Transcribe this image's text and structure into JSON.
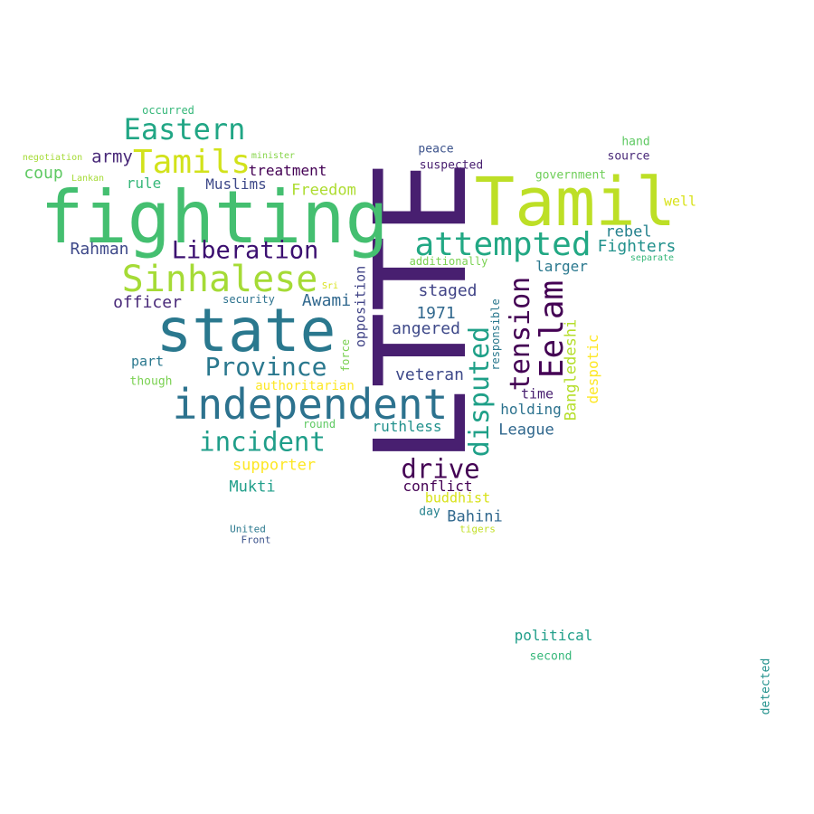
{
  "words": [
    {
      "text": "LTTE",
      "color": "#481f70",
      "vertical": true
    },
    {
      "text": "fighting",
      "color": "#44bf70",
      "vertical": false
    },
    {
      "text": "Tamil",
      "color": "#bddf26",
      "vertical": false
    },
    {
      "text": "state",
      "color": "#2a788e",
      "vertical": false
    },
    {
      "text": "independent",
      "color": "#2c728e",
      "vertical": false
    },
    {
      "text": "Sinhalese",
      "color": "#a5db36",
      "vertical": false
    },
    {
      "text": "Tamils",
      "color": "#d2e21b",
      "vertical": false
    },
    {
      "text": "attempted",
      "color": "#22a884",
      "vertical": false
    },
    {
      "text": "Eastern",
      "color": "#21a685",
      "vertical": false
    },
    {
      "text": "Liberation",
      "color": "#3b0f70",
      "vertical": false
    },
    {
      "text": "Province",
      "color": "#2a788e",
      "vertical": false
    },
    {
      "text": "incident",
      "color": "#1f9e89",
      "vertical": false
    },
    {
      "text": "Eelam",
      "color": "#440154",
      "vertical": true
    },
    {
      "text": "tension",
      "color": "#440154",
      "vertical": true
    },
    {
      "text": "disputed",
      "color": "#1fa088",
      "vertical": true
    },
    {
      "text": "drive",
      "color": "#440154",
      "vertical": false
    },
    {
      "text": "Fighters",
      "color": "#21918c",
      "vertical": false
    },
    {
      "text": "army",
      "color": "#482878",
      "vertical": false
    },
    {
      "text": "coup",
      "color": "#5ec962",
      "vertical": false
    },
    {
      "text": "treatment",
      "color": "#440154",
      "vertical": false
    },
    {
      "text": "Muslims",
      "color": "#3e4989",
      "vertical": false
    },
    {
      "text": "rule",
      "color": "#35b779",
      "vertical": false
    },
    {
      "text": "Freedom",
      "color": "#addc30",
      "vertical": false
    },
    {
      "text": "Rahman",
      "color": "#3e4989",
      "vertical": false
    },
    {
      "text": "officer",
      "color": "#482878",
      "vertical": false
    },
    {
      "text": "Awami",
      "color": "#31688e",
      "vertical": false
    },
    {
      "text": "staged",
      "color": "#414487",
      "vertical": false
    },
    {
      "text": "1971",
      "color": "#31688e",
      "vertical": false
    },
    {
      "text": "angered",
      "color": "#3e4989",
      "vertical": false
    },
    {
      "text": "veteran",
      "color": "#3e4989",
      "vertical": false
    },
    {
      "text": "rebel",
      "color": "#26828e",
      "vertical": false
    },
    {
      "text": "larger",
      "color": "#2a788e",
      "vertical": false
    },
    {
      "text": "time",
      "color": "#481f70",
      "vertical": false
    },
    {
      "text": "holding",
      "color": "#2c728e",
      "vertical": false
    },
    {
      "text": "League",
      "color": "#31688e",
      "vertical": false
    },
    {
      "text": "Bangledeshi",
      "color": "#b5de2b",
      "vertical": true
    },
    {
      "text": "despotic",
      "color": "#fde725",
      "vertical": true
    },
    {
      "text": "opposition",
      "color": "#414487",
      "vertical": true
    },
    {
      "text": "responsible",
      "color": "#2a788e",
      "vertical": true
    },
    {
      "text": "force",
      "color": "#7ad151",
      "vertical": true
    },
    {
      "text": "supporter",
      "color": "#fde725",
      "vertical": false
    },
    {
      "text": "Mukti",
      "color": "#1f9e89",
      "vertical": false
    },
    {
      "text": "ruthless",
      "color": "#21918c",
      "vertical": false
    },
    {
      "text": "conflict",
      "color": "#440154",
      "vertical": false
    },
    {
      "text": "buddhist",
      "color": "#d8e219",
      "vertical": false
    },
    {
      "text": "Bahini",
      "color": "#31688e",
      "vertical": false
    },
    {
      "text": "day",
      "color": "#26828e",
      "vertical": false
    },
    {
      "text": "tigers",
      "color": "#c2df23",
      "vertical": false
    },
    {
      "text": "United",
      "color": "#2a788e",
      "vertical": false
    },
    {
      "text": "Front",
      "color": "#3b528b",
      "vertical": false
    },
    {
      "text": "round",
      "color": "#5ec962",
      "vertical": false
    },
    {
      "text": "authoritarian",
      "color": "#fde725",
      "vertical": false
    },
    {
      "text": "part",
      "color": "#2a788e",
      "vertical": false
    },
    {
      "text": "though",
      "color": "#7ad151",
      "vertical": false
    },
    {
      "text": "security",
      "color": "#2c728e",
      "vertical": false
    },
    {
      "text": "Sri",
      "color": "#d8e219",
      "vertical": false
    },
    {
      "text": "occurred",
      "color": "#35b779",
      "vertical": false
    },
    {
      "text": "negotiation",
      "color": "#a5db36",
      "vertical": false
    },
    {
      "text": "minister",
      "color": "#86d549",
      "vertical": false
    },
    {
      "text": "Lankan",
      "color": "#a5db36",
      "vertical": false
    },
    {
      "text": "peace",
      "color": "#3b528b",
      "vertical": false
    },
    {
      "text": "suspected",
      "color": "#481f70",
      "vertical": false
    },
    {
      "text": "hand",
      "color": "#5ec962",
      "vertical": false
    },
    {
      "text": "source",
      "color": "#482878",
      "vertical": false
    },
    {
      "text": "government",
      "color": "#6ece58",
      "vertical": false
    },
    {
      "text": "well",
      "color": "#d8e219",
      "vertical": false
    },
    {
      "text": "separate",
      "color": "#35b779",
      "vertical": false
    },
    {
      "text": "additionally",
      "color": "#7ad151",
      "vertical": false
    },
    {
      "text": "political",
      "color": "#1f9e89",
      "vertical": false
    },
    {
      "text": "second",
      "color": "#35b779",
      "vertical": false
    },
    {
      "text": "detected",
      "color": "#21918c",
      "vertical": true
    }
  ]
}
